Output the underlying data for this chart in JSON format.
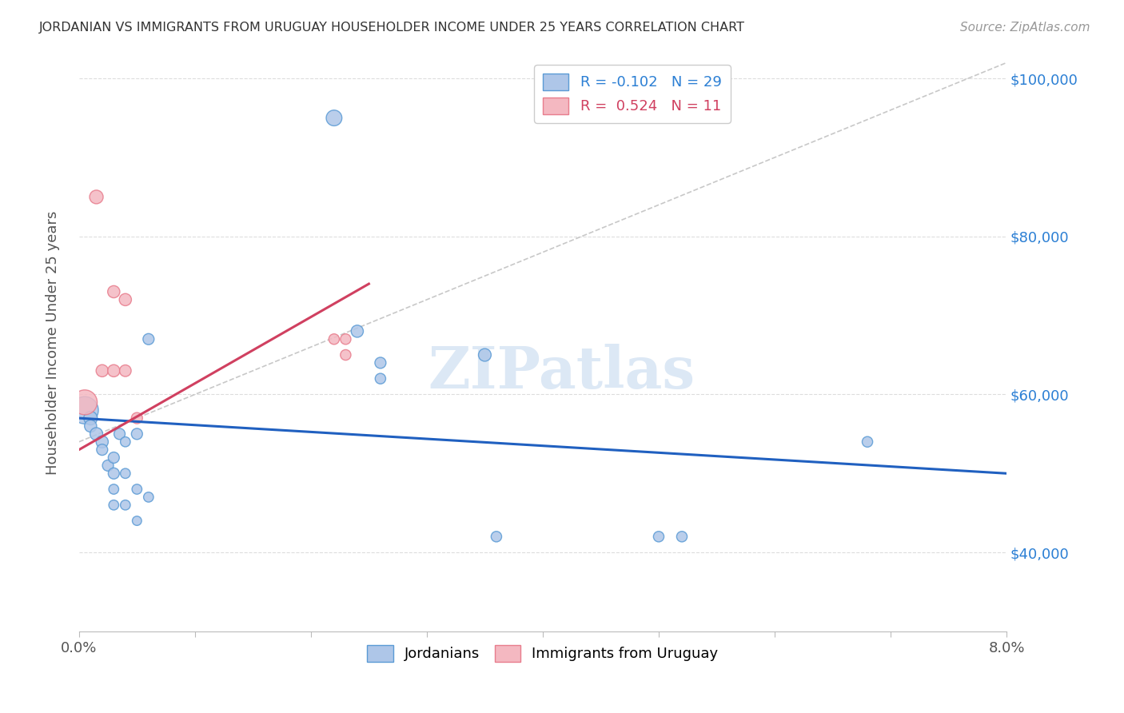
{
  "title": "JORDANIAN VS IMMIGRANTS FROM URUGUAY HOUSEHOLDER INCOME UNDER 25 YEARS CORRELATION CHART",
  "source": "Source: ZipAtlas.com",
  "ylabel": "Householder Income Under 25 years",
  "xlim": [
    0.0,
    0.08
  ],
  "ylim": [
    30000,
    103000
  ],
  "yticks": [
    40000,
    60000,
    80000,
    100000
  ],
  "yticklabels": [
    "$40,000",
    "$60,000",
    "$80,000",
    "$100,000"
  ],
  "jordanian_x": [
    0.0005,
    0.001,
    0.001,
    0.0015,
    0.002,
    0.002,
    0.0025,
    0.003,
    0.003,
    0.003,
    0.003,
    0.0035,
    0.004,
    0.004,
    0.004,
    0.005,
    0.005,
    0.005,
    0.006,
    0.006,
    0.022,
    0.024,
    0.026,
    0.026,
    0.035,
    0.036,
    0.05,
    0.052,
    0.068
  ],
  "jordanian_y": [
    58000,
    57000,
    56000,
    55000,
    54000,
    53000,
    51000,
    52000,
    50000,
    48000,
    46000,
    55000,
    54000,
    50000,
    46000,
    55000,
    48000,
    44000,
    67000,
    47000,
    95000,
    68000,
    64000,
    62000,
    65000,
    42000,
    42000,
    42000,
    54000
  ],
  "jordanian_sizes": [
    600,
    150,
    120,
    130,
    120,
    100,
    100,
    100,
    100,
    80,
    80,
    100,
    80,
    80,
    80,
    100,
    80,
    70,
    100,
    80,
    200,
    120,
    100,
    90,
    130,
    90,
    90,
    90,
    90
  ],
  "uruguay_x": [
    0.0005,
    0.0015,
    0.002,
    0.003,
    0.003,
    0.004,
    0.004,
    0.005,
    0.022,
    0.023,
    0.023
  ],
  "uruguay_y": [
    59000,
    85000,
    63000,
    63000,
    73000,
    72000,
    63000,
    57000,
    67000,
    67000,
    65000
  ],
  "uruguay_sizes": [
    500,
    150,
    120,
    120,
    120,
    120,
    110,
    100,
    90,
    90,
    90
  ],
  "jordanian_color": "#aec6e8",
  "uruguay_color": "#f4b8c1",
  "jordanian_edge": "#5b9bd5",
  "uruguay_edge": "#e87d8d",
  "trend_jordan_color": "#2060c0",
  "trend_uruguay_color": "#d04060",
  "diagonal_color": "#c8c8c8",
  "background_color": "#ffffff",
  "watermark": "ZIPatlas",
  "watermark_color": "#dce8f5",
  "R_jordan": -0.102,
  "R_uruguay": 0.524,
  "N_jordan": 29,
  "N_uruguay": 11,
  "jordan_trend_x": [
    0.0,
    0.08
  ],
  "jordan_trend_y": [
    57000,
    50000
  ],
  "uruguay_trend_x": [
    0.0,
    0.025
  ],
  "uruguay_trend_y": [
    53000,
    74000
  ]
}
